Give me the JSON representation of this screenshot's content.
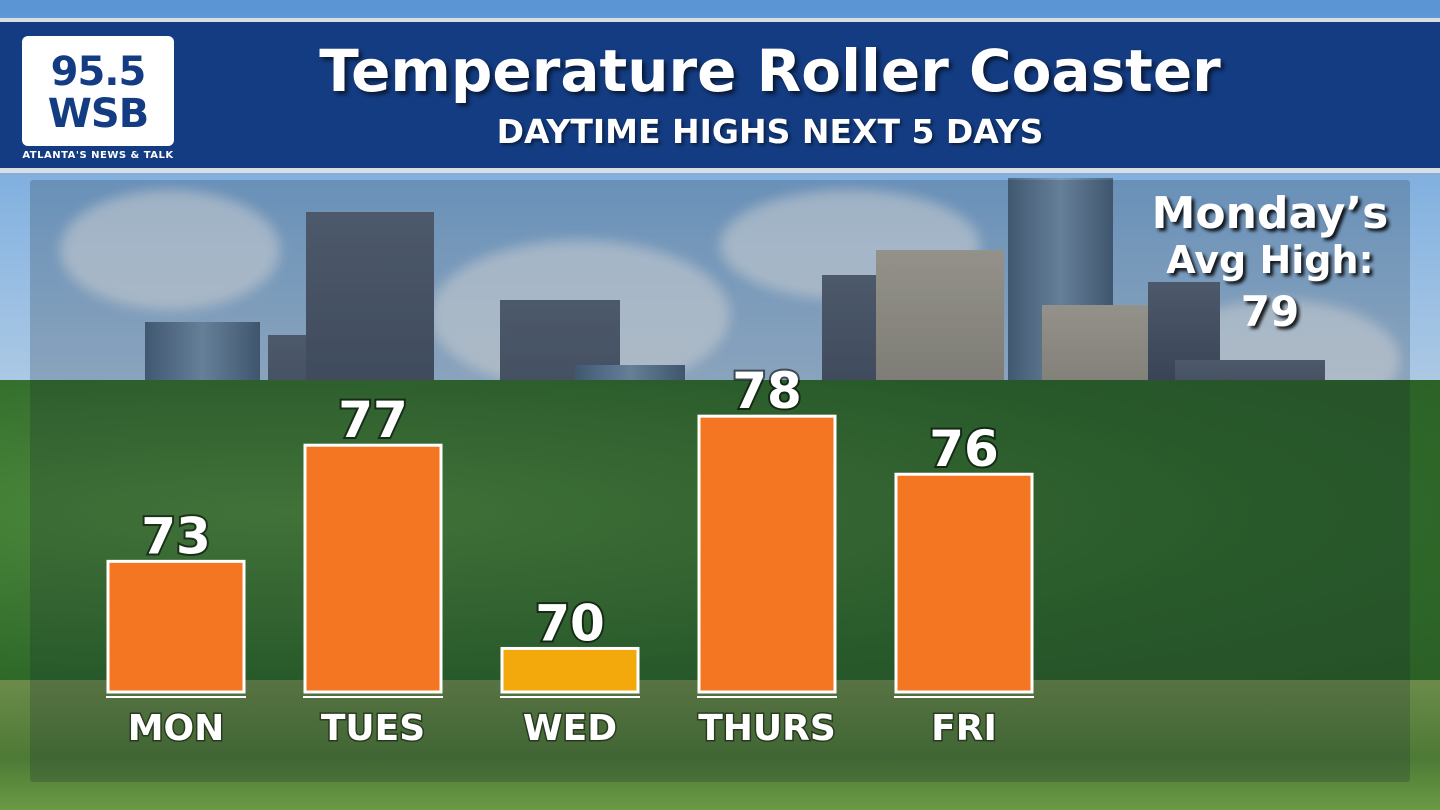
{
  "logo": {
    "line1": "95.5",
    "line2": "WSB",
    "tagline": "ATLANTA'S NEWS & TALK"
  },
  "header": {
    "title": "Temperature Roller Coaster",
    "subtitle": "DAYTIME HIGHS NEXT 5 DAYS"
  },
  "annotation": {
    "line1": "Monday’s",
    "line2": "Avg High:",
    "value": "79"
  },
  "colors": {
    "header_bg": "#143c82",
    "bar_default": "#f47622",
    "bar_low": "#f3a80c",
    "bar_border": "#ffffff"
  },
  "chart_data": {
    "type": "bar",
    "categories": [
      "MON",
      "TUES",
      "WED",
      "THURS",
      "FRI"
    ],
    "values": [
      73,
      77,
      70,
      78,
      76
    ],
    "bar_colors": [
      "#f47622",
      "#f47622",
      "#f3a80c",
      "#f47622",
      "#f47622"
    ],
    "title": "Temperature Roller Coaster",
    "subtitle": "DAYTIME HIGHS NEXT 5 DAYS",
    "ylim": [
      68.5,
      79.9
    ],
    "grid": false,
    "legend": "none"
  }
}
